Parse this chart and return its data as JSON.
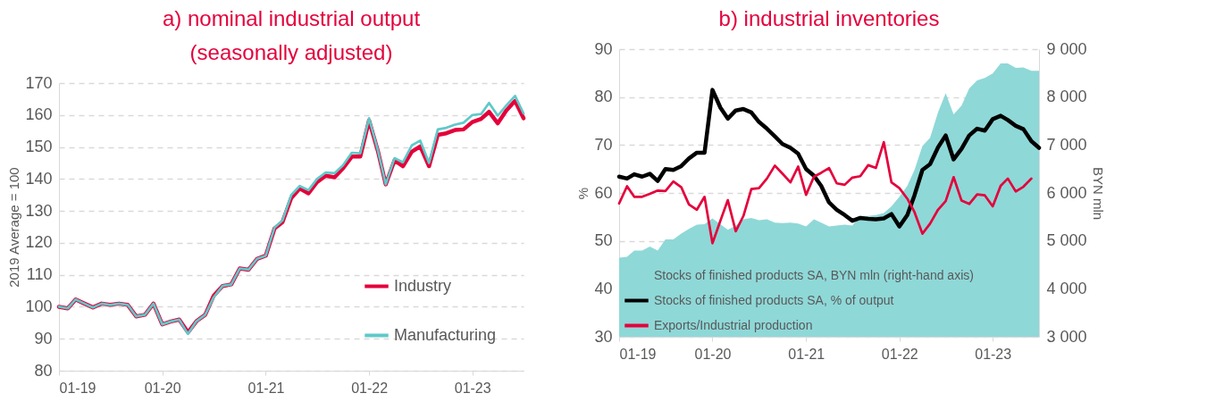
{
  "chart_data": [
    {
      "type": "line",
      "title": "a) nominal industrial output\n(seasonally adjusted)",
      "ylabel": "2019 Average = 100",
      "x": [
        "2019-01",
        "2019-02",
        "2019-03",
        "2019-04",
        "2019-05",
        "2019-06",
        "2019-07",
        "2019-08",
        "2019-09",
        "2019-10",
        "2019-11",
        "2019-12",
        "2020-01",
        "2020-02",
        "2020-03",
        "2020-04",
        "2020-05",
        "2020-06",
        "2020-07",
        "2020-08",
        "2020-09",
        "2020-10",
        "2020-11",
        "2020-12",
        "2021-01",
        "2021-02",
        "2021-03",
        "2021-04",
        "2021-05",
        "2021-06",
        "2021-07",
        "2021-08",
        "2021-09",
        "2021-10",
        "2021-11",
        "2021-12",
        "2022-01",
        "2022-02",
        "2022-03",
        "2022-04",
        "2022-05",
        "2022-06",
        "2022-07",
        "2022-08",
        "2022-09",
        "2022-10",
        "2022-11",
        "2022-12",
        "2023-01",
        "2023-02",
        "2023-03",
        "2023-04",
        "2023-05",
        "2023-06",
        "2023-07"
      ],
      "series": [
        {
          "name": "Industry",
          "color": "#e4003b",
          "values": [
            100,
            99.5,
            102.3,
            101,
            99.8,
            101,
            100.6,
            101,
            100.6,
            97,
            97.5,
            101,
            94.5,
            95.4,
            96,
            92,
            95.5,
            97.5,
            103.5,
            106.5,
            107,
            112,
            111.6,
            115,
            116,
            124.5,
            126.5,
            134,
            137,
            135.5,
            139,
            141,
            140.5,
            143.3,
            147,
            147,
            158.3,
            148.8,
            138.3,
            145.8,
            144,
            148.5,
            150.2,
            144,
            153.8,
            154.3,
            155.3,
            155.5,
            157.8,
            158.8,
            161,
            157.4,
            161.4,
            164.4,
            159
          ]
        },
        {
          "name": "Manufacturing",
          "color": "#5fc9c9",
          "values": [
            100,
            99.5,
            102.3,
            101,
            99.8,
            101,
            100.6,
            101,
            100.6,
            97,
            97.5,
            101,
            94.5,
            95.4,
            96,
            91.5,
            95.5,
            97.5,
            103,
            106.5,
            107,
            112,
            111.6,
            115,
            116,
            124.8,
            127,
            135,
            137.8,
            136.5,
            140,
            142,
            141.8,
            144.3,
            148.2,
            148,
            159,
            149,
            138.3,
            146.5,
            145.2,
            150.5,
            152,
            145,
            155.5,
            156,
            157,
            157.6,
            160,
            160.3,
            163.8,
            159.8,
            163,
            166,
            160.5
          ]
        }
      ],
      "xlim": [
        "2019-01",
        "2023-07"
      ],
      "xticks": [
        {
          "value": "2019-01",
          "label": "01-19"
        },
        {
          "value": "2020-01",
          "label": "01-20"
        },
        {
          "value": "2021-01",
          "label": "01-21"
        },
        {
          "value": "2022-01",
          "label": "01-22"
        },
        {
          "value": "2023-01",
          "label": "01-23"
        }
      ],
      "ylim": [
        80,
        170
      ],
      "yticks": [
        80,
        90,
        100,
        110,
        120,
        130,
        140,
        150,
        160,
        170
      ],
      "grid": "y",
      "legend": "bottom right",
      "line_style": "solid",
      "marker": "none"
    },
    {
      "type": "line",
      "title": "b) industrial inventories",
      "ylabel": "%",
      "y2label": "BYN mln",
      "x": [
        "2019-01",
        "2019-02",
        "2019-03",
        "2019-04",
        "2019-05",
        "2019-06",
        "2019-07",
        "2019-08",
        "2019-09",
        "2019-10",
        "2019-11",
        "2019-12",
        "2020-01",
        "2020-02",
        "2020-03",
        "2020-04",
        "2020-05",
        "2020-06",
        "2020-07",
        "2020-08",
        "2020-09",
        "2020-10",
        "2020-11",
        "2020-12",
        "2021-01",
        "2021-02",
        "2021-03",
        "2021-04",
        "2021-05",
        "2021-06",
        "2021-07",
        "2021-08",
        "2021-09",
        "2021-10",
        "2021-11",
        "2021-12",
        "2022-01",
        "2022-02",
        "2022-03",
        "2022-04",
        "2022-05",
        "2022-06",
        "2022-07",
        "2022-08",
        "2022-09",
        "2022-10",
        "2022-11",
        "2022-12",
        "2023-01",
        "2023-02",
        "2023-03",
        "2023-04",
        "2023-05",
        "2023-06",
        "2023-07"
      ],
      "series": [
        {
          "name": "Stocks of finished products SA, BYN mln (right-hand axis)",
          "type": "area",
          "axis": "y2",
          "color": "#8fd8d8",
          "values": [
            4650,
            4670,
            4800,
            4800,
            4880,
            4800,
            5030,
            5030,
            5150,
            5250,
            5340,
            5350,
            5470,
            5350,
            5230,
            5320,
            5450,
            5480,
            5430,
            5450,
            5380,
            5370,
            5380,
            5360,
            5300,
            5450,
            5380,
            5300,
            5320,
            5340,
            5320,
            5520,
            5520,
            5540,
            5580,
            5720,
            5920,
            6150,
            6480,
            6980,
            7150,
            7680,
            8080,
            7640,
            7820,
            8180,
            8350,
            8400,
            8490,
            8700,
            8700,
            8610,
            8620,
            8550,
            8550
          ]
        },
        {
          "name": "Stocks of finished products SA, % of output",
          "color": "#000000",
          "values": [
            63.4,
            63,
            63.9,
            63.4,
            64,
            62.5,
            65,
            64.8,
            65.6,
            67.2,
            68.4,
            68.4,
            81.5,
            77.8,
            75.5,
            77.2,
            77.5,
            76.8,
            74.8,
            73.4,
            71.8,
            70.2,
            69.4,
            68.2,
            65,
            63.6,
            61.5,
            58,
            56.5,
            55.4,
            54.2,
            54.8,
            54.6,
            54.5,
            54.7,
            55.6,
            53,
            55.4,
            59.5,
            64.8,
            66,
            69.5,
            72,
            67,
            69.2,
            72,
            73.4,
            73,
            75.4,
            76.1,
            75.2,
            74,
            73.3,
            70.8,
            69.4
          ]
        },
        {
          "name": "Exports/Industrial production",
          "color": "#e4003b",
          "values": [
            57.8,
            61.4,
            59.2,
            59.2,
            59.8,
            60.5,
            60.4,
            62.4,
            61.2,
            57.6,
            56.5,
            59.2,
            49.5,
            54.2,
            58.5,
            52,
            55.2,
            60.8,
            61,
            63,
            65.7,
            64,
            62.2,
            65.5,
            59.6,
            63.4,
            64.2,
            65.2,
            62,
            61.7,
            63.2,
            63.5,
            65.8,
            65.2,
            70.6,
            62.2,
            61,
            58.8,
            56,
            51.5,
            53.6,
            56.5,
            58.3,
            63.3,
            58.4,
            57.7,
            59.7,
            59.5,
            57.2,
            61.5,
            63,
            60.3,
            61.3,
            63,
            null
          ]
        }
      ],
      "xlim": [
        "2019-01",
        "2023-07"
      ],
      "xticks": [
        {
          "value": "2019-01",
          "label": "01-19"
        },
        {
          "value": "2020-01",
          "label": "01-20"
        },
        {
          "value": "2021-01",
          "label": "01-21"
        },
        {
          "value": "2022-01",
          "label": "01-22"
        },
        {
          "value": "2023-01",
          "label": "01-23"
        }
      ],
      "ylim": [
        30,
        90
      ],
      "yticks": [
        30,
        40,
        50,
        60,
        70,
        80,
        90
      ],
      "y2lim": [
        3000,
        9000
      ],
      "y2ticks": [
        {
          "value": 3000,
          "label": "3 000"
        },
        {
          "value": 4000,
          "label": "4 000"
        },
        {
          "value": 5000,
          "label": "5 000"
        },
        {
          "value": 6000,
          "label": "6 000"
        },
        {
          "value": 7000,
          "label": "7 000"
        },
        {
          "value": 8000,
          "label": "8 000"
        },
        {
          "value": 9000,
          "label": "9 000"
        }
      ],
      "grid": "y",
      "legend": "bottom left",
      "line_style": "solid",
      "marker": "none"
    }
  ]
}
